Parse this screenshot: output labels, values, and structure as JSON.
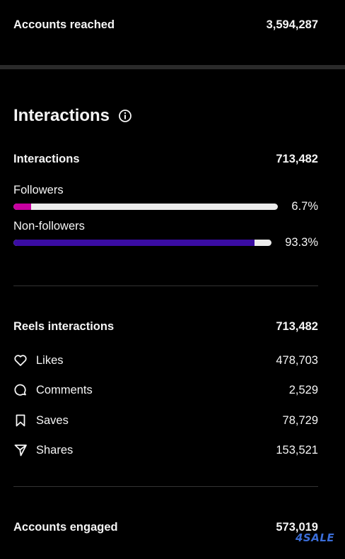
{
  "accounts_reached": {
    "label": "Accounts reached",
    "value": "3,594,287"
  },
  "interactions_section": {
    "heading": "Interactions",
    "info_icon": "info-circle-icon",
    "total": {
      "label": "Interactions",
      "value": "713,482"
    },
    "followers": {
      "label": "Followers",
      "percent_text": "6.7%",
      "percent": 6.7,
      "color": "#c800a1"
    },
    "non_followers": {
      "label": "Non-followers",
      "percent_text": "93.3%",
      "percent": 93.3,
      "color": "#3a0ca3"
    }
  },
  "reels": {
    "header": {
      "label": "Reels interactions",
      "value": "713,482"
    },
    "items": [
      {
        "label": "Likes",
        "value": "478,703",
        "icon": "heart-icon"
      },
      {
        "label": "Comments",
        "value": "2,529",
        "icon": "comment-icon"
      },
      {
        "label": "Saves",
        "value": "78,729",
        "icon": "bookmark-icon"
      },
      {
        "label": "Shares",
        "value": "153,521",
        "icon": "share-icon"
      }
    ]
  },
  "accounts_engaged": {
    "label": "Accounts engaged",
    "value": "573,019"
  },
  "watermark": "4SALE"
}
